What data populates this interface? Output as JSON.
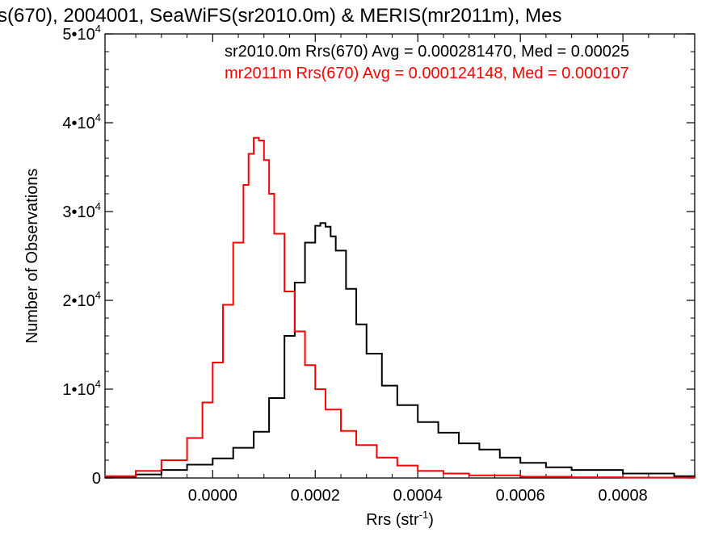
{
  "chart_data": {
    "type": "line",
    "title": "s(670), 2004001, SeaWiFS(sr2010.0m) & MERIS(mr2011m), Mes",
    "xlabel": "Rrs (str",
    "xlabel_sup": "-1",
    "xlabel_end": ")",
    "ylabel": "Number of Observations",
    "xlim": [
      -0.00021,
      0.00094
    ],
    "ylim": [
      0,
      50000
    ],
    "x_ticks": [
      0.0,
      0.0002,
      0.0004,
      0.0006,
      0.0008
    ],
    "x_tick_labels": [
      "0.0000",
      "0.0002",
      "0.0004",
      "0.0006",
      "0.0008"
    ],
    "y_ticks": [
      0,
      10000,
      20000,
      30000,
      40000,
      50000
    ],
    "y_tick_labels": [
      {
        "base": "0",
        "exp": ""
      },
      {
        "base": "1•10",
        "exp": "4"
      },
      {
        "base": "2•10",
        "exp": "4"
      },
      {
        "base": "3•10",
        "exp": "4"
      },
      {
        "base": "4•10",
        "exp": "4"
      },
      {
        "base": "5•10",
        "exp": "4"
      }
    ],
    "grid": false,
    "series": [
      {
        "name": "sr2010.0m Rrs(670)",
        "color": "#000000",
        "annotation": "sr2010.0m Rrs(670) Avg = 0.000281470, Med = 0.00025",
        "x": [
          -0.00021,
          -0.00015,
          -0.0001,
          -5e-05,
          0.0,
          4e-05,
          8e-05,
          0.00011,
          0.00014,
          0.00016,
          0.00018,
          0.0002,
          0.00021,
          0.00022,
          0.00023,
          0.00024,
          0.00026,
          0.00028,
          0.0003,
          0.00033,
          0.00036,
          0.0004,
          0.00044,
          0.00048,
          0.00052,
          0.00056,
          0.0006,
          0.00065,
          0.0007,
          0.0008,
          0.0009,
          0.00094
        ],
        "y": [
          100,
          400,
          900,
          1500,
          2200,
          3400,
          5200,
          9000,
          16000,
          22000,
          26500,
          28400,
          28700,
          28300,
          27200,
          25600,
          21300,
          17300,
          14000,
          10400,
          8200,
          6300,
          5100,
          3900,
          3200,
          2300,
          1700,
          1200,
          900,
          500,
          200,
          100
        ]
      },
      {
        "name": "mr2011m Rrs(670)",
        "color": "#ff0000",
        "annotation": "mr2011m Rrs(670) Avg = 0.000124148, Med = 0.000107",
        "x": [
          -0.00021,
          -0.00015,
          -0.0001,
          -5e-05,
          -2e-05,
          0.0,
          2e-05,
          4e-05,
          6e-05,
          7e-05,
          8e-05,
          9e-05,
          0.0001,
          0.00011,
          0.00012,
          0.00014,
          0.00016,
          0.00018,
          0.0002,
          0.00022,
          0.00025,
          0.00028,
          0.00032,
          0.00036,
          0.0004,
          0.00045,
          0.0005,
          0.0006,
          0.0007,
          0.0008,
          0.00094
        ],
        "y": [
          200,
          800,
          2000,
          4500,
          8500,
          13000,
          19500,
          26500,
          33000,
          36500,
          38300,
          38000,
          35800,
          32000,
          27500,
          21000,
          16500,
          12700,
          10000,
          7700,
          5300,
          3700,
          2300,
          1400,
          800,
          500,
          300,
          150,
          80,
          40,
          20
        ]
      }
    ]
  }
}
